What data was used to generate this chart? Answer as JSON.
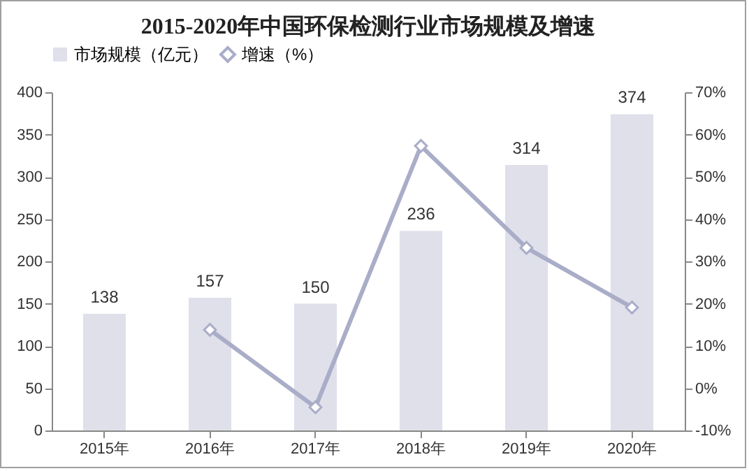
{
  "chart_data": {
    "type": "bar",
    "title": "2015-2020年中国环保检测行业市场规模及增速",
    "categories": [
      "2015年",
      "2016年",
      "2017年",
      "2018年",
      "2019年",
      "2020年"
    ],
    "series": [
      {
        "name": "市场规模（亿元）",
        "color": "#dfe0ea",
        "values": [
          138,
          157,
          150,
          236,
          314,
          374
        ],
        "value_labels": [
          "138",
          "157",
          "150",
          "236",
          "314",
          "374"
        ]
      },
      {
        "name": "增速（%）",
        "type": "line",
        "axis": "y2",
        "color": "#a9adc8",
        "marker": "diamond",
        "values": [
          null,
          13.8,
          -4.5,
          57.3,
          33.2,
          19.1
        ]
      }
    ],
    "ylim": [
      0,
      400
    ],
    "yticks": [
      0,
      50,
      100,
      150,
      200,
      250,
      300,
      350,
      400
    ],
    "y2lim": [
      -10,
      70
    ],
    "y2ticks": [
      {
        "value": -10,
        "label": "-10%"
      },
      {
        "value": 0,
        "label": "0%"
      },
      {
        "value": 10,
        "label": "10%"
      },
      {
        "value": 20,
        "label": "20%"
      },
      {
        "value": 30,
        "label": "30%"
      },
      {
        "value": 40,
        "label": "40%"
      },
      {
        "value": 50,
        "label": "50%"
      },
      {
        "value": 60,
        "label": "60%"
      },
      {
        "value": 70,
        "label": "70%"
      }
    ],
    "grid": false,
    "legend": "top"
  }
}
